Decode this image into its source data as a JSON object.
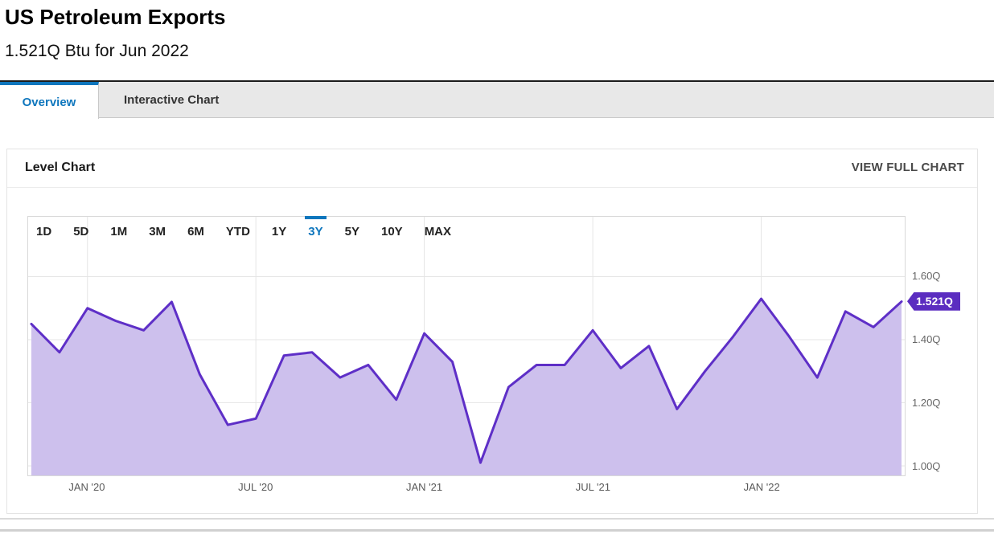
{
  "header": {
    "title": "US Petroleum Exports",
    "subtitle": "1.521Q Btu for Jun 2022"
  },
  "tabs": {
    "overview": "Overview",
    "interactive": "Interactive Chart"
  },
  "panel": {
    "title": "Level Chart",
    "action": "VIEW FULL CHART"
  },
  "ranges": {
    "options": [
      "1D",
      "5D",
      "1M",
      "3M",
      "6M",
      "YTD",
      "1Y",
      "3Y",
      "5Y",
      "10Y",
      "MAX"
    ],
    "selected": "3Y"
  },
  "chart_data": {
    "type": "area",
    "title": "Level Chart",
    "unit": "Q Btu",
    "x": [
      "Nov '19",
      "Dec '19",
      "Jan '20",
      "Feb '20",
      "Mar '20",
      "Apr '20",
      "May '20",
      "Jun '20",
      "Jul '20",
      "Aug '20",
      "Sep '20",
      "Oct '20",
      "Nov '20",
      "Dec '20",
      "Jan '21",
      "Feb '21",
      "Mar '21",
      "Apr '21",
      "May '21",
      "Jun '21",
      "Jul '21",
      "Aug '21",
      "Sep '21",
      "Oct '21",
      "Nov '21",
      "Dec '21",
      "Jan '22",
      "Feb '22",
      "Mar '22",
      "Apr '22",
      "May '22",
      "Jun '22"
    ],
    "values": [
      1.45,
      1.36,
      1.5,
      1.46,
      1.43,
      1.52,
      1.29,
      1.13,
      1.15,
      1.35,
      1.36,
      1.28,
      1.32,
      1.21,
      1.42,
      1.33,
      1.01,
      1.25,
      1.32,
      1.32,
      1.43,
      1.31,
      1.38,
      1.18,
      1.3,
      1.41,
      1.53,
      1.41,
      1.28,
      1.49,
      1.44,
      1.521
    ],
    "current": {
      "label": "1.521Q",
      "value": 1.521,
      "date": "Jun 2022"
    },
    "y_ticks": [
      {
        "label": "1.60Q",
        "value": 1.6
      },
      {
        "label": "1.40Q",
        "value": 1.4
      },
      {
        "label": "1.20Q",
        "value": 1.2
      },
      {
        "label": "1.00Q",
        "value": 1.0
      }
    ],
    "x_ticks": [
      {
        "label": "JAN '20",
        "index": 2
      },
      {
        "label": "JUL '20",
        "index": 8
      },
      {
        "label": "JAN '21",
        "index": 14
      },
      {
        "label": "JUL '21",
        "index": 20
      },
      {
        "label": "JAN '22",
        "index": 26
      }
    ],
    "ylim": [
      0.97,
      1.79
    ],
    "grid": true,
    "legend": "none",
    "colors": {
      "line": "#5e2fc7",
      "fill": "#cdc0ed",
      "badge": "#5b2dc0",
      "accent": "#0e76bd",
      "gridline": "#e5e5e5"
    }
  }
}
